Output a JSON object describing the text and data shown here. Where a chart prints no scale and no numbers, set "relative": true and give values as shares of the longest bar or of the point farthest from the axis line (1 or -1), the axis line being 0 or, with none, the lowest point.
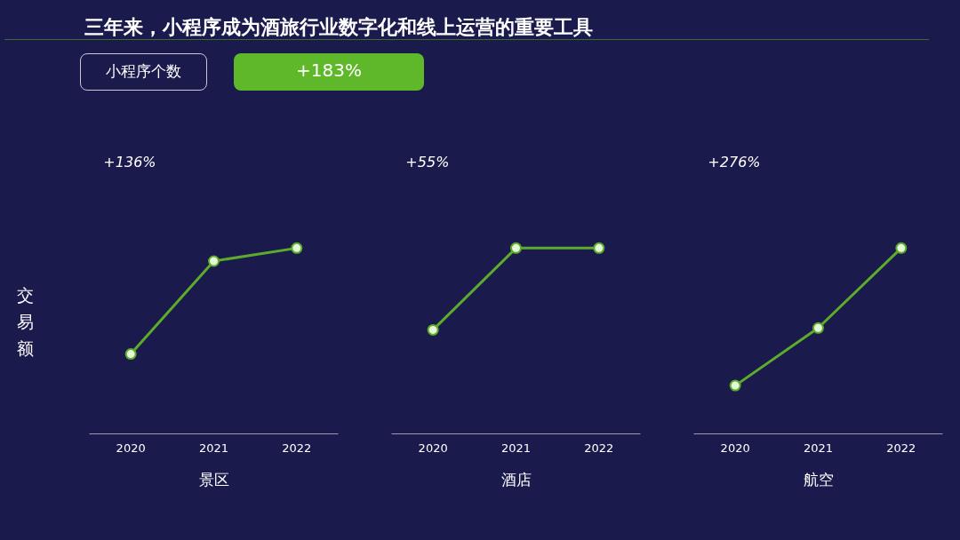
{
  "chart_data": [
    {
      "type": "other",
      "title": "三年来，小程序成为酒旅行业数字化和线上运营的重要工具",
      "annotations": [
        "小程序个数",
        "+183%"
      ]
    },
    {
      "type": "line",
      "relative": true,
      "categories": [
        "2020",
        "2021",
        "2022"
      ],
      "xlabel": "景区",
      "ylabel": "交易额",
      "annotations": [
        "+136%"
      ],
      "marker": "circle",
      "grid": false,
      "series": [
        {
          "color": "#5dab2b",
          "values": [
            0.43,
            0.93,
            1
          ]
        }
      ]
    },
    {
      "type": "line",
      "relative": true,
      "categories": [
        "2020",
        "2021",
        "2022"
      ],
      "xlabel": "酒店",
      "annotations": [
        "+55%"
      ],
      "marker": "circle",
      "grid": false,
      "series": [
        {
          "color": "#5dab2b",
          "values": [
            0.56,
            1,
            1
          ]
        }
      ]
    },
    {
      "type": "line",
      "relative": true,
      "categories": [
        "2020",
        "2021",
        "2022"
      ],
      "xlabel": "航空",
      "annotations": [
        "+276%"
      ],
      "marker": "circle",
      "grid": false,
      "series": [
        {
          "color": "#5dab2b",
          "values": [
            0.26,
            0.57,
            1
          ]
        }
      ]
    }
  ]
}
